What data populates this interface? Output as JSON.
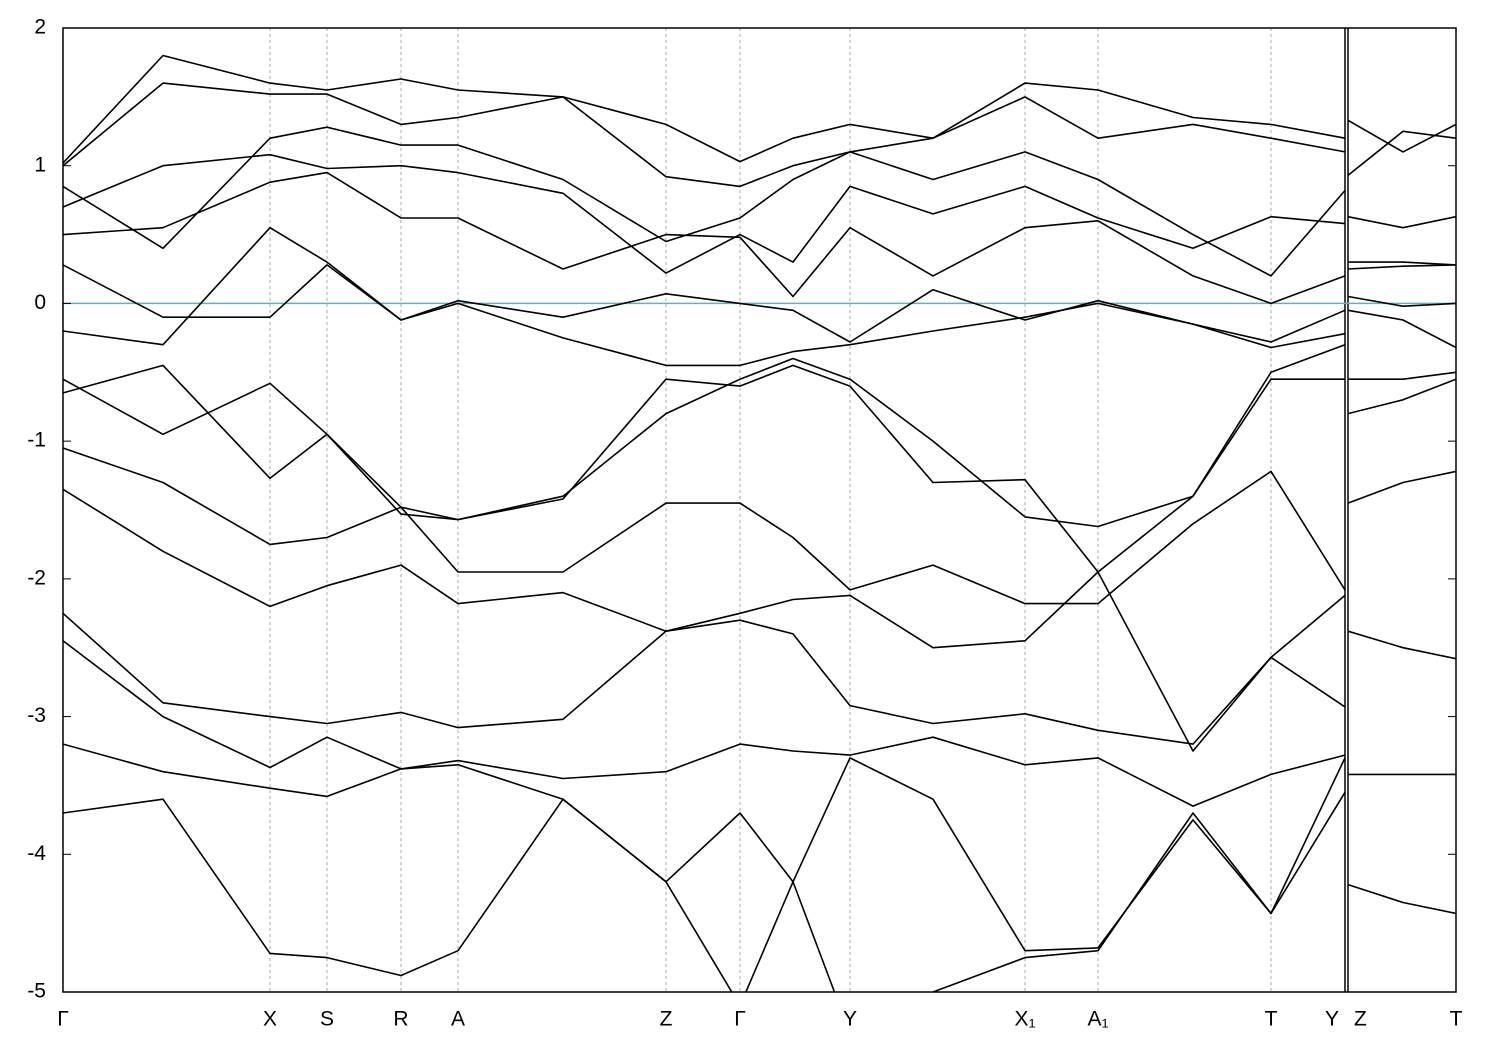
{
  "chart_data": {
    "type": "line",
    "x": [
      0,
      100,
      207,
      264,
      338,
      395,
      500,
      603,
      677,
      730,
      787,
      870,
      962,
      1035,
      1130,
      1208,
      1282,
      1283.5,
      1285,
      1340,
      1393
    ],
    "xlim": [
      0,
      1393
    ],
    "ylim": [
      -5,
      2
    ],
    "xticks": [
      {
        "value": 0,
        "label": "Γ"
      },
      {
        "value": 207,
        "label": "X"
      },
      {
        "value": 264,
        "label": "S"
      },
      {
        "value": 338,
        "label": "R"
      },
      {
        "value": 395,
        "label": "A"
      },
      {
        "value": 603,
        "label": "Z"
      },
      {
        "value": 677,
        "label": "Γ"
      },
      {
        "value": 787,
        "label": "Y"
      },
      {
        "value": 962,
        "label": "X₁"
      },
      {
        "value": 1035,
        "label": "A₁"
      },
      {
        "value": 1208,
        "label": "T"
      },
      {
        "value": 1282,
        "label": "Y"
      },
      {
        "value": 1285,
        "label": "Z"
      },
      {
        "value": 1393,
        "label": "T"
      }
    ],
    "yticks": [
      -5,
      -4,
      -3,
      -2,
      -1,
      0,
      1,
      2
    ],
    "grid": true,
    "grid_color": "#aaaaaa",
    "fermi_level": 0,
    "fermi_color": "#5ab4c8",
    "series": [
      {
        "color": "#000000",
        "values": [
          1.02,
          1.8,
          1.6,
          1.55,
          1.63,
          1.55,
          1.5,
          1.3,
          1.03,
          1.2,
          1.3,
          1.2,
          1.6,
          1.55,
          1.35,
          1.3,
          1.2,
          null,
          1.33,
          1.1,
          1.3
        ]
      },
      {
        "color": "#000000",
        "values": [
          1.0,
          1.6,
          1.52,
          1.52,
          1.3,
          1.35,
          1.5,
          0.92,
          0.85,
          1.0,
          1.1,
          1.2,
          1.5,
          1.2,
          1.3,
          1.2,
          1.1,
          null,
          0.93,
          1.25,
          1.2
        ]
      },
      {
        "color": "#000000",
        "values": [
          0.85,
          0.4,
          1.2,
          1.28,
          1.15,
          1.15,
          0.9,
          0.45,
          0.62,
          0.9,
          1.1,
          0.9,
          1.1,
          0.9,
          0.5,
          0.2,
          0.82,
          null,
          0.63,
          0.55,
          0.63
        ]
      },
      {
        "color": "#000000",
        "values": [
          0.7,
          1.0,
          1.08,
          0.98,
          1.0,
          0.95,
          0.8,
          0.22,
          0.5,
          0.3,
          0.85,
          0.65,
          0.85,
          0.62,
          0.4,
          0.63,
          0.58,
          null,
          0.3,
          0.3,
          0.28
        ]
      },
      {
        "color": "#000000",
        "values": [
          0.5,
          0.55,
          0.88,
          0.95,
          0.62,
          0.62,
          0.25,
          0.5,
          0.48,
          0.05,
          0.55,
          0.2,
          0.55,
          0.6,
          0.2,
          0.0,
          0.2,
          null,
          0.25,
          0.27,
          0.28
        ]
      },
      {
        "color": "#000000",
        "values": [
          0.28,
          -0.1,
          -0.1,
          0.28,
          -0.12,
          0.02,
          -0.1,
          0.07,
          0.0,
          -0.05,
          -0.28,
          0.1,
          -0.12,
          0.02,
          -0.15,
          -0.32,
          -0.22,
          null,
          0.05,
          -0.02,
          0.0
        ]
      },
      {
        "color": "#000000",
        "values": [
          -0.2,
          -0.3,
          0.55,
          0.3,
          -0.12,
          0.0,
          -0.25,
          -0.45,
          -0.45,
          -0.35,
          -0.3,
          -0.2,
          -0.1,
          0.0,
          -0.15,
          -0.28,
          -0.05,
          null,
          -0.05,
          -0.12,
          -0.32
        ]
      },
      {
        "color": "#000000",
        "values": [
          -0.55,
          -0.95,
          -0.58,
          -0.95,
          -1.48,
          -1.57,
          -1.4,
          -0.8,
          -0.55,
          -0.4,
          -0.55,
          -1.0,
          -1.55,
          -1.62,
          -1.4,
          -0.5,
          -0.3,
          null,
          -0.55,
          -0.55,
          -0.5
        ]
      },
      {
        "color": "#000000",
        "values": [
          -0.65,
          -0.45,
          -1.27,
          -0.95,
          -1.53,
          -1.57,
          -1.42,
          -0.55,
          -0.6,
          -0.45,
          -0.6,
          -1.3,
          -1.28,
          -1.95,
          -1.4,
          -0.55,
          -0.55,
          null,
          -0.8,
          -0.7,
          -0.55
        ]
      },
      {
        "color": "#000000",
        "values": [
          -1.05,
          -1.3,
          -1.75,
          -1.7,
          -1.48,
          -1.95,
          -1.95,
          -1.45,
          -1.45,
          -1.7,
          -2.08,
          -1.9,
          -2.18,
          -2.18,
          -1.6,
          -1.22,
          -2.08,
          null,
          -1.45,
          -1.3,
          -1.22
        ]
      },
      {
        "color": "#000000",
        "values": [
          -1.35,
          -1.8,
          -2.2,
          -2.05,
          -1.9,
          -2.18,
          -2.1,
          -2.38,
          -2.25,
          -2.15,
          -2.12,
          -2.5,
          -2.45,
          -1.95,
          -3.25,
          -2.57,
          -2.12,
          null,
          -2.38,
          -2.5,
          -2.58
        ]
      },
      {
        "color": "#000000",
        "values": [
          -2.25,
          -2.9,
          -3.0,
          -3.05,
          -2.97,
          -3.08,
          -3.02,
          -2.38,
          -2.3,
          -2.4,
          -2.92,
          -3.05,
          -2.98,
          -3.1,
          -3.2,
          -2.57,
          -2.93,
          null,
          -3.42,
          -3.42,
          -3.42
        ]
      },
      {
        "color": "#000000",
        "values": [
          -2.45,
          -3.0,
          -3.37,
          -3.15,
          -3.38,
          -3.32,
          -3.45,
          -3.4,
          -3.2,
          -3.25,
          -3.28,
          -3.15,
          -3.35,
          -3.3,
          -3.65,
          -3.42,
          -3.28,
          null,
          -4.22,
          -4.35,
          -4.43
        ]
      },
      {
        "color": "#000000",
        "values": [
          -3.2,
          -3.4,
          -3.52,
          -3.58,
          -3.38,
          -3.35,
          -3.6,
          -4.2,
          -3.7,
          -4.2,
          -3.3,
          -3.6,
          -4.7,
          -4.68,
          -3.75,
          -4.43,
          -3.55,
          null,
          null,
          null,
          null
        ]
      },
      {
        "color": "#000000",
        "values": [
          -3.7,
          -3.6,
          -4.72,
          -4.75,
          -4.88,
          -4.7,
          -3.6,
          -4.2,
          -5.1,
          -4.2,
          -5.3,
          -5.0,
          -4.75,
          -4.7,
          -3.7,
          -4.43,
          -3.3,
          null,
          null,
          null,
          null
        ]
      }
    ]
  }
}
